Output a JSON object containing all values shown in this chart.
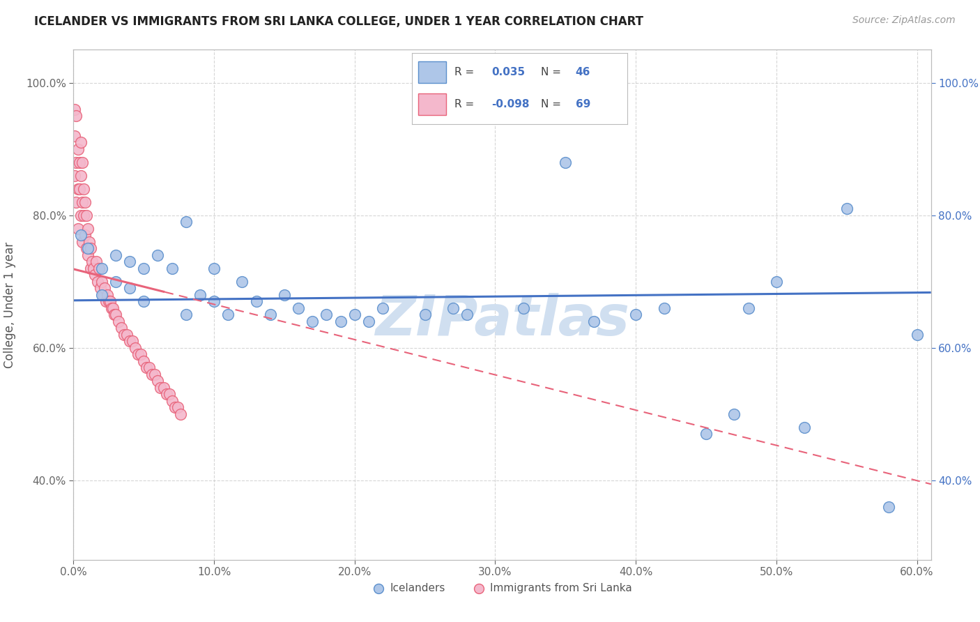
{
  "title": "ICELANDER VS IMMIGRANTS FROM SRI LANKA COLLEGE, UNDER 1 YEAR CORRELATION CHART",
  "source": "Source: ZipAtlas.com",
  "ylabel": "College, Under 1 year",
  "x_tick_labels": [
    "0.0%",
    "10.0%",
    "20.0%",
    "30.0%",
    "40.0%",
    "50.0%",
    "60.0%"
  ],
  "y_tick_labels": [
    "40.0%",
    "60.0%",
    "80.0%",
    "100.0%"
  ],
  "xlim": [
    0.0,
    0.61
  ],
  "ylim": [
    0.28,
    1.05
  ],
  "legend_labels": [
    "Icelanders",
    "Immigrants from Sri Lanka"
  ],
  "R_blue": 0.035,
  "N_blue": 46,
  "R_pink": -0.098,
  "N_pink": 69,
  "blue_color": "#aec6e8",
  "pink_color": "#f4b8cc",
  "blue_edge_color": "#5b8fcc",
  "pink_edge_color": "#e8637a",
  "blue_line_color": "#4472c4",
  "pink_line_color": "#e8637a",
  "watermark": "ZIPatlas",
  "watermark_color": "#d0dff0",
  "blue_scatter_x": [
    0.005,
    0.01,
    0.02,
    0.02,
    0.03,
    0.03,
    0.04,
    0.04,
    0.05,
    0.05,
    0.06,
    0.07,
    0.08,
    0.08,
    0.09,
    0.1,
    0.1,
    0.11,
    0.12,
    0.13,
    0.14,
    0.15,
    0.16,
    0.17,
    0.18,
    0.19,
    0.2,
    0.21,
    0.22,
    0.25,
    0.27,
    0.28,
    0.3,
    0.32,
    0.35,
    0.37,
    0.4,
    0.42,
    0.45,
    0.47,
    0.48,
    0.5,
    0.52,
    0.55,
    0.58,
    0.6
  ],
  "blue_scatter_y": [
    0.77,
    0.75,
    0.72,
    0.68,
    0.74,
    0.7,
    0.73,
    0.69,
    0.72,
    0.67,
    0.74,
    0.72,
    0.79,
    0.65,
    0.68,
    0.72,
    0.67,
    0.65,
    0.7,
    0.67,
    0.65,
    0.68,
    0.66,
    0.64,
    0.65,
    0.64,
    0.65,
    0.64,
    0.66,
    0.65,
    0.66,
    0.65,
    1.01,
    0.66,
    0.88,
    0.64,
    0.65,
    0.66,
    0.47,
    0.5,
    0.66,
    0.7,
    0.48,
    0.81,
    0.36,
    0.62
  ],
  "pink_scatter_x": [
    0.001,
    0.001,
    0.001,
    0.002,
    0.002,
    0.002,
    0.003,
    0.003,
    0.003,
    0.004,
    0.004,
    0.005,
    0.005,
    0.005,
    0.006,
    0.006,
    0.006,
    0.007,
    0.007,
    0.008,
    0.008,
    0.009,
    0.009,
    0.01,
    0.01,
    0.011,
    0.012,
    0.012,
    0.013,
    0.014,
    0.015,
    0.016,
    0.017,
    0.018,
    0.019,
    0.02,
    0.021,
    0.022,
    0.023,
    0.024,
    0.025,
    0.026,
    0.027,
    0.028,
    0.029,
    0.03,
    0.032,
    0.034,
    0.036,
    0.038,
    0.04,
    0.042,
    0.044,
    0.046,
    0.048,
    0.05,
    0.052,
    0.054,
    0.056,
    0.058,
    0.06,
    0.062,
    0.064,
    0.066,
    0.068,
    0.07,
    0.072,
    0.074,
    0.076
  ],
  "pink_scatter_y": [
    0.96,
    0.92,
    0.86,
    0.95,
    0.88,
    0.82,
    0.9,
    0.84,
    0.78,
    0.88,
    0.84,
    0.91,
    0.86,
    0.8,
    0.88,
    0.82,
    0.76,
    0.84,
    0.8,
    0.82,
    0.77,
    0.8,
    0.75,
    0.78,
    0.74,
    0.76,
    0.75,
    0.72,
    0.73,
    0.72,
    0.71,
    0.73,
    0.7,
    0.72,
    0.69,
    0.7,
    0.68,
    0.69,
    0.67,
    0.68,
    0.67,
    0.67,
    0.66,
    0.66,
    0.65,
    0.65,
    0.64,
    0.63,
    0.62,
    0.62,
    0.61,
    0.61,
    0.6,
    0.59,
    0.59,
    0.58,
    0.57,
    0.57,
    0.56,
    0.56,
    0.55,
    0.54,
    0.54,
    0.53,
    0.53,
    0.52,
    0.51,
    0.51,
    0.5
  ]
}
